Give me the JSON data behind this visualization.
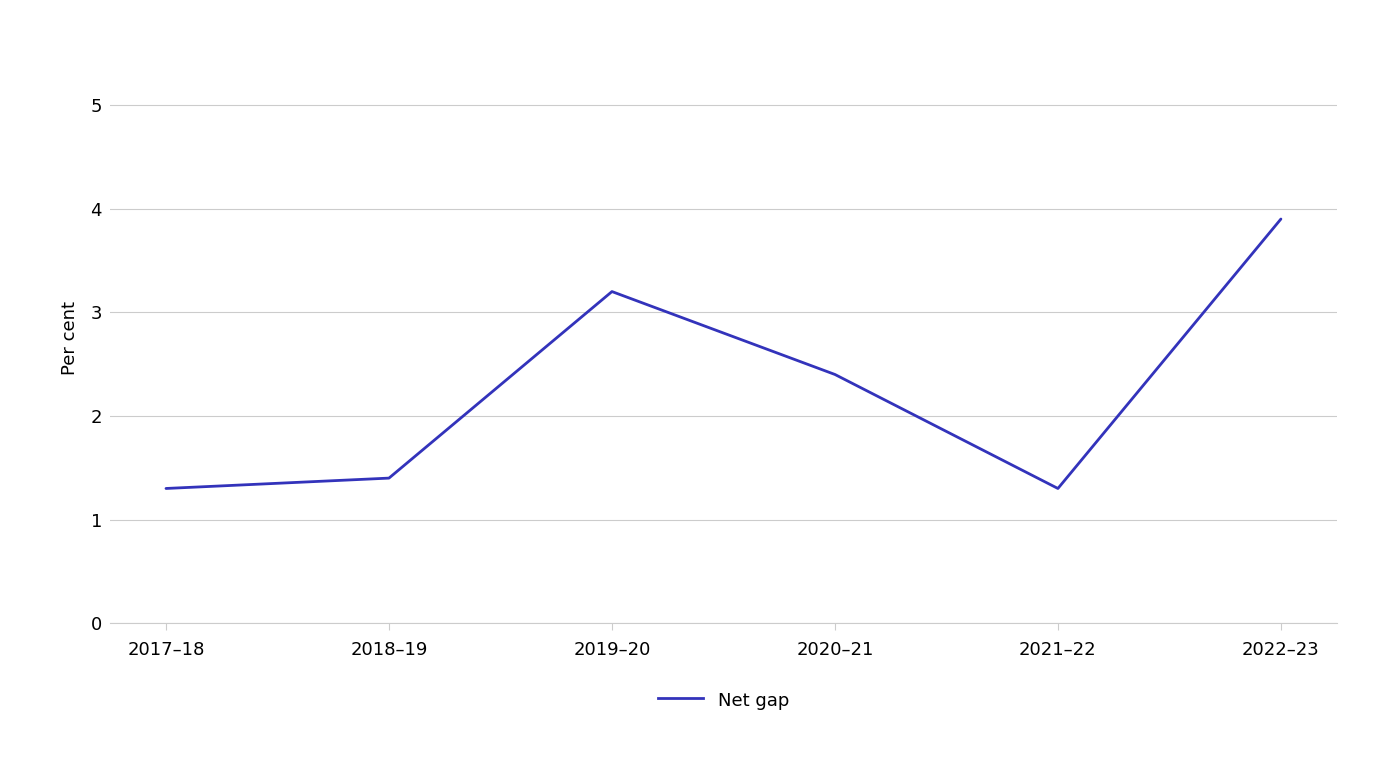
{
  "x_labels": [
    "2017–18",
    "2018–19",
    "2019–20",
    "2020–21",
    "2021–22",
    "2022–23"
  ],
  "x_values": [
    0,
    1,
    2,
    3,
    4,
    5
  ],
  "y_values": [
    1.3,
    1.4,
    3.2,
    2.4,
    1.3,
    3.9
  ],
  "line_color": "#3333bb",
  "line_width": 2.0,
  "ylabel": "Per cent",
  "ylim": [
    0,
    5.5
  ],
  "yticks": [
    0,
    1,
    2,
    3,
    4,
    5
  ],
  "legend_label": "Net gap",
  "background_color": "#ffffff",
  "grid_color": "#cccccc",
  "ylabel_fontsize": 13,
  "tick_fontsize": 13,
  "legend_fontsize": 13,
  "xlim": [
    -0.25,
    5.25
  ]
}
